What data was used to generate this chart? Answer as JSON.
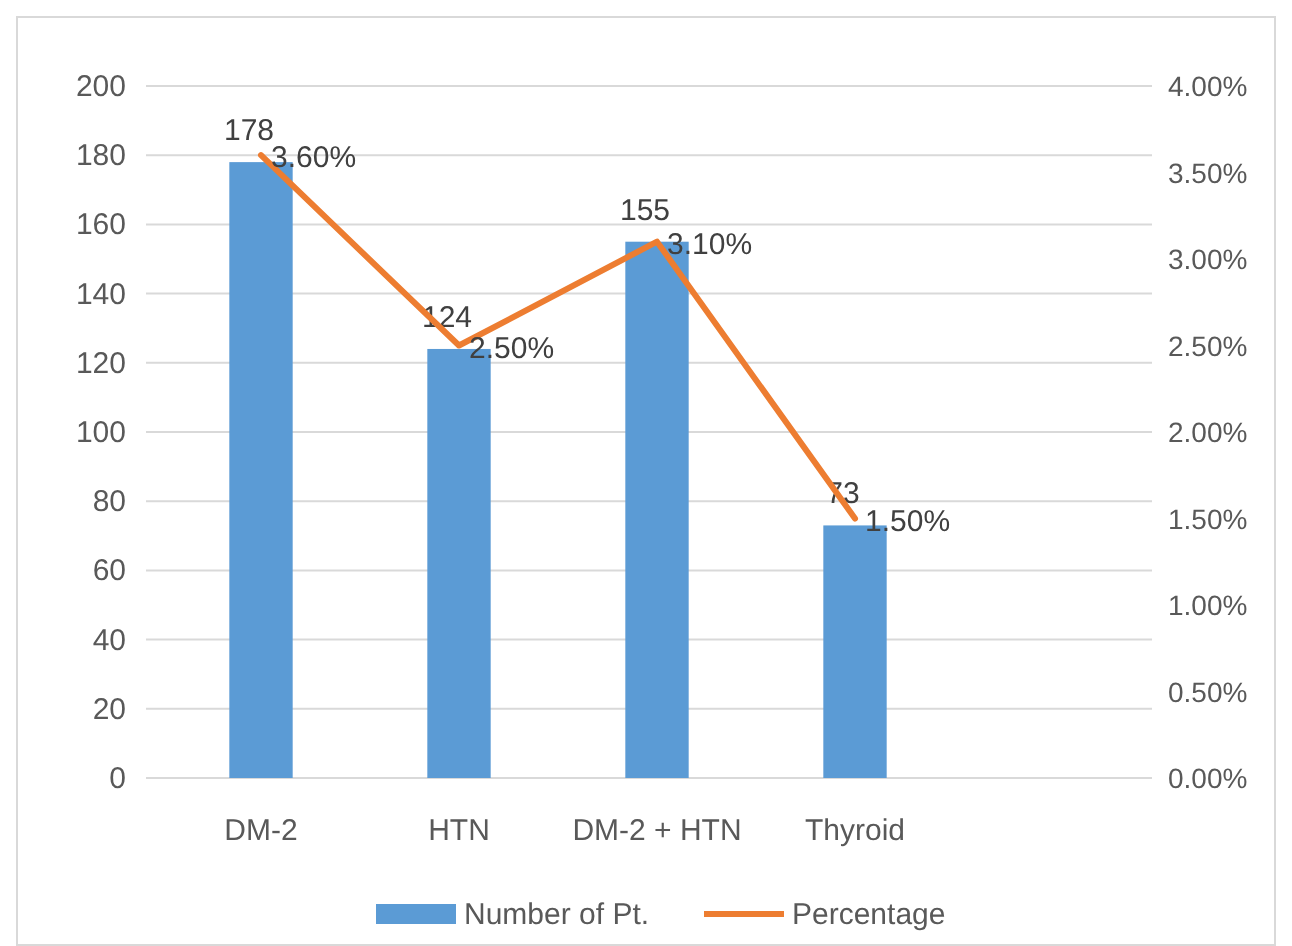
{
  "chart_data": {
    "type": "bar",
    "categories": [
      "DM-2",
      "HTN",
      "DM-2 + HTN",
      "Thyroid"
    ],
    "series": [
      {
        "name": "Number of Pt.",
        "color": "#5b9bd5",
        "values": [
          178,
          124,
          155,
          73
        ],
        "value_labels": [
          "178",
          "124",
          "155",
          "73"
        ]
      },
      {
        "name": "Percentage",
        "type": "line",
        "axis": "y2",
        "color": "#ed7d31",
        "values": [
          3.6,
          2.5,
          3.1,
          1.5
        ],
        "value_labels": [
          "3.60%",
          "2.50%",
          "3.10%",
          "1.50%"
        ]
      }
    ],
    "ylim": [
      0,
      200
    ],
    "yticks": [
      0,
      20,
      40,
      60,
      80,
      100,
      120,
      140,
      160,
      180,
      200
    ],
    "y2lim": [
      0,
      4
    ],
    "y2ticks": [
      {
        "value": 0,
        "label": "0.00%"
      },
      {
        "value": 0.5,
        "label": "0.50%"
      },
      {
        "value": 1,
        "label": "1.00%"
      },
      {
        "value": 1.5,
        "label": "1.50%"
      },
      {
        "value": 2,
        "label": "2.00%"
      },
      {
        "value": 2.5,
        "label": "2.50%"
      },
      {
        "value": 3,
        "label": "3.00%"
      },
      {
        "value": 3.5,
        "label": "3.50%"
      },
      {
        "value": 4,
        "label": "4.00%"
      }
    ],
    "grid": "y",
    "legend": "bottom",
    "marker": "none",
    "line_style": "solid"
  }
}
